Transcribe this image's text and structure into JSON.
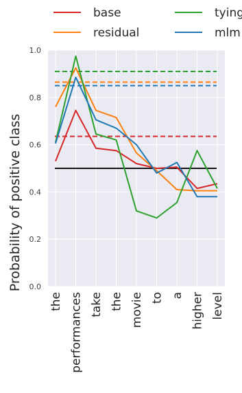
{
  "chart_data": {
    "type": "line",
    "title": "",
    "xlabel": "",
    "ylabel": "Probability of positive class",
    "ylim": [
      0.0,
      1.0
    ],
    "yticks": [
      0.0,
      0.2,
      0.4,
      0.6,
      0.8,
      1.0
    ],
    "ytick_labels": [
      "0.0",
      "0.2",
      "0.4",
      "0.6",
      "0.8",
      "1.0"
    ],
    "categories": [
      "the",
      "performances",
      "take",
      "the",
      "movie",
      "to",
      "a",
      "higher",
      "level"
    ],
    "grid": true,
    "legend_position": "top",
    "background": "#eaeaf2",
    "series": [
      {
        "name": "base",
        "color": "#d62728",
        "values": [
          0.53,
          0.745,
          0.585,
          0.575,
          0.52,
          0.5,
          0.505,
          0.415,
          0.435
        ]
      },
      {
        "name": "residual",
        "color": "#ff7f0e",
        "values": [
          0.76,
          0.925,
          0.745,
          0.715,
          0.565,
          0.49,
          0.41,
          0.405,
          0.405
        ]
      },
      {
        "name": "tying",
        "color": "#2ca02c",
        "values": [
          0.61,
          0.975,
          0.645,
          0.62,
          0.32,
          0.29,
          0.355,
          0.575,
          0.415
        ]
      },
      {
        "name": "mlm",
        "color": "#1f77b4",
        "values": [
          0.605,
          0.885,
          0.705,
          0.67,
          0.6,
          0.48,
          0.525,
          0.38,
          0.38
        ]
      }
    ],
    "reference_lines": [
      {
        "series": "base",
        "y": 0.635,
        "style": "dashed",
        "color": "#d62728"
      },
      {
        "series": "residual",
        "y": 0.865,
        "style": "dashed",
        "color": "#ff7f0e"
      },
      {
        "series": "tying",
        "y": 0.91,
        "style": "dashed",
        "color": "#2ca02c"
      },
      {
        "series": "mlm",
        "y": 0.85,
        "style": "dashed",
        "color": "#1f77b4"
      },
      {
        "series": "",
        "y": 0.5,
        "style": "solid",
        "color": "#111111"
      }
    ]
  }
}
